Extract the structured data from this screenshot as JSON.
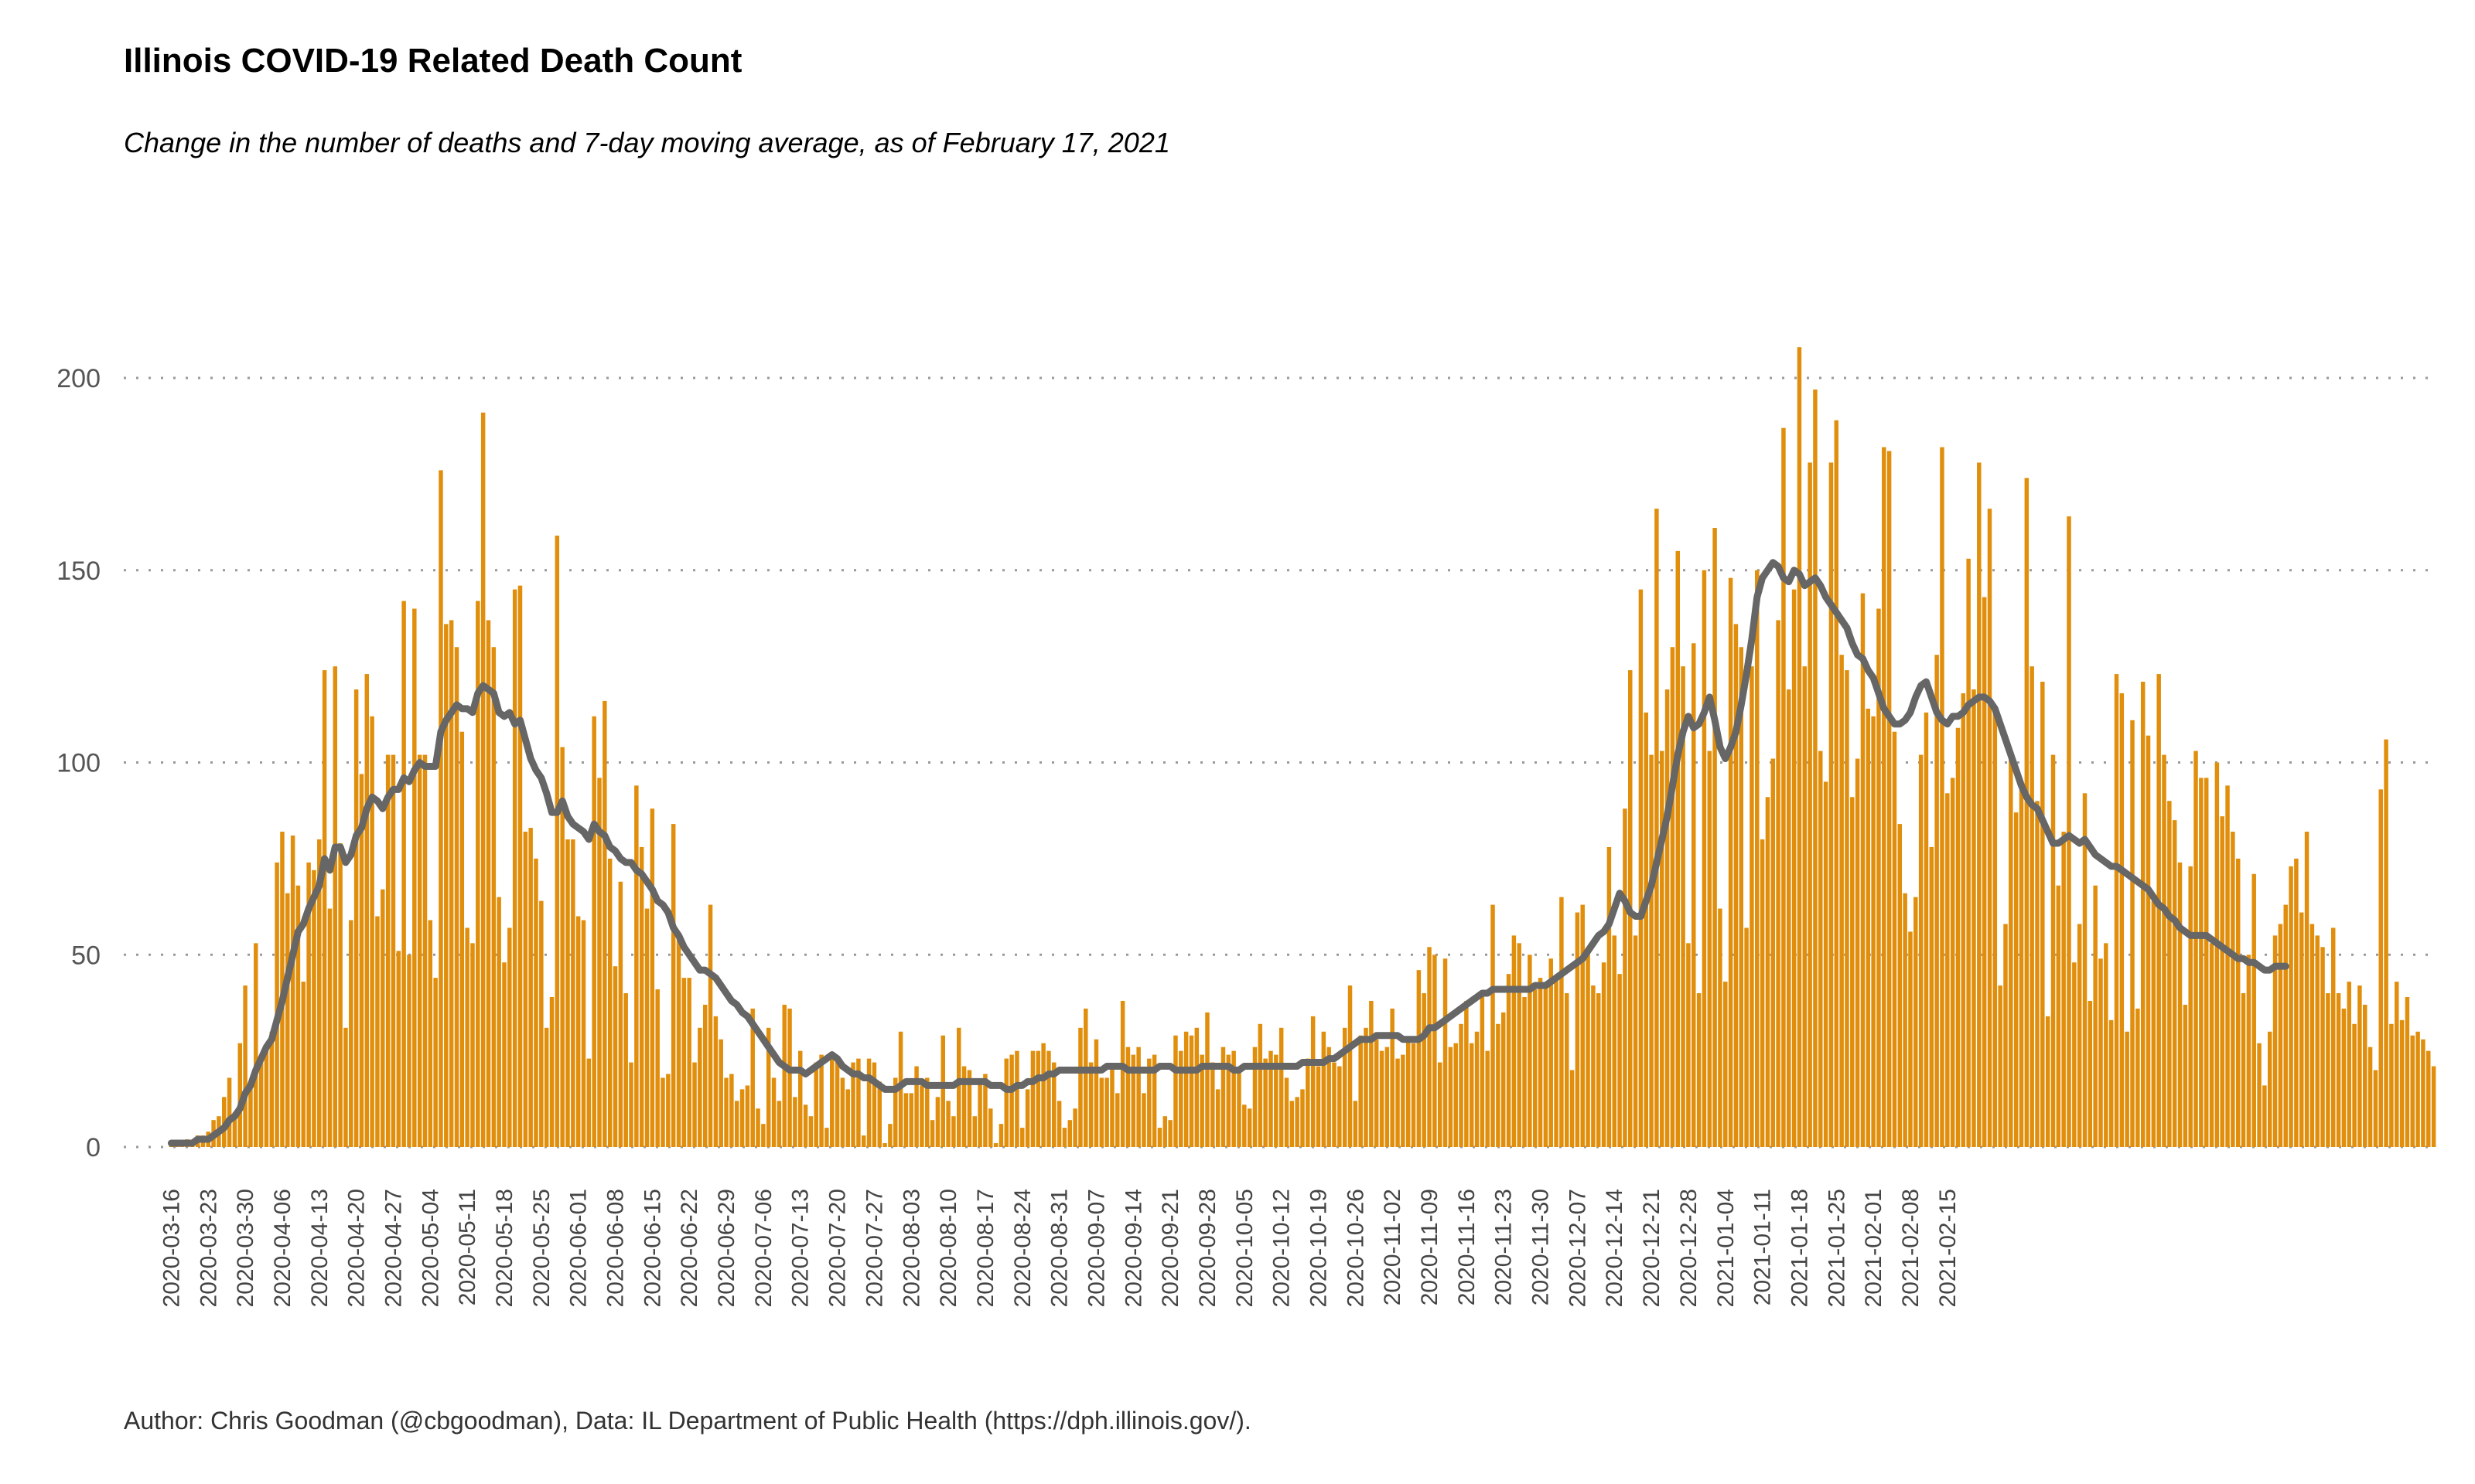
{
  "title": "Illinois COVID-19 Related Death Count",
  "subtitle": "Change in the number of deaths and 7-day moving average, as of February 17, 2021",
  "caption": "Author: Chris Goodman (@cbgoodman), Data: IL Department of Public Health (https://dph.illinois.gov/).",
  "colors": {
    "bar": "#E08E0B",
    "line": "#666666",
    "grid": "#999999"
  },
  "chart_data": {
    "type": "bar",
    "start_date": "2020-03-16",
    "end_date": "2021-02-17",
    "ylim": [
      0,
      240
    ],
    "yticks": [
      0,
      50,
      100,
      150,
      200
    ],
    "grid": "horizontal-dotted",
    "xticks": [
      "2020-03-16",
      "2020-03-23",
      "2020-03-30",
      "2020-04-06",
      "2020-04-13",
      "2020-04-20",
      "2020-04-27",
      "2020-05-04",
      "2020-05-11",
      "2020-05-18",
      "2020-05-25",
      "2020-06-01",
      "2020-06-08",
      "2020-06-15",
      "2020-06-22",
      "2020-06-29",
      "2020-07-06",
      "2020-07-13",
      "2020-07-20",
      "2020-07-27",
      "2020-08-03",
      "2020-08-10",
      "2020-08-17",
      "2020-08-24",
      "2020-08-31",
      "2020-09-07",
      "2020-09-14",
      "2020-09-21",
      "2020-09-28",
      "2020-10-05",
      "2020-10-12",
      "2020-10-19",
      "2020-10-26",
      "2020-11-02",
      "2020-11-09",
      "2020-11-16",
      "2020-11-23",
      "2020-11-30",
      "2020-12-07",
      "2020-12-14",
      "2020-12-21",
      "2020-12-28",
      "2021-01-04",
      "2021-01-11",
      "2021-01-18",
      "2021-01-25",
      "2021-02-01",
      "2021-02-08",
      "2021-02-15"
    ],
    "series": [
      {
        "type": "bar",
        "values": [
          1,
          1,
          1,
          2,
          1,
          3,
          3,
          4,
          7,
          8,
          13,
          18,
          9,
          27,
          42,
          16,
          53,
          22,
          26,
          30,
          74,
          82,
          66,
          81,
          68,
          43,
          74,
          72,
          80,
          124,
          62,
          125,
          79,
          31,
          59,
          119,
          97,
          123,
          112,
          60,
          67,
          102,
          102,
          51,
          142,
          50,
          140,
          102,
          102,
          59,
          44,
          176,
          136,
          137,
          130,
          108,
          57,
          53,
          142,
          191,
          137,
          130,
          65,
          48,
          57,
          145,
          146,
          82,
          83,
          75,
          64,
          31,
          39,
          159,
          104,
          80,
          80,
          60,
          59,
          23,
          112,
          96,
          116,
          75,
          47,
          69,
          40,
          22,
          94,
          78,
          62,
          88,
          41,
          18,
          19,
          84,
          54,
          44,
          44,
          22,
          31,
          37,
          63,
          34,
          28,
          18,
          19,
          12,
          15,
          16,
          36,
          10,
          6,
          31,
          18,
          12,
          37,
          36,
          13,
          25,
          11,
          8,
          22,
          24,
          5,
          24,
          23,
          18,
          15,
          22,
          23,
          3,
          23,
          22,
          17,
          1,
          6,
          18,
          30,
          14,
          14,
          21,
          16,
          18,
          7,
          13,
          29,
          12,
          8,
          31,
          21,
          20,
          8,
          17,
          19,
          10,
          1,
          6,
          23,
          24,
          25,
          5,
          15,
          25,
          25,
          27,
          25,
          22,
          12,
          5,
          7,
          10,
          31,
          36,
          22,
          28,
          18,
          18,
          21,
          14,
          38,
          26,
          24,
          26,
          14,
          23,
          24,
          5,
          8,
          7,
          29,
          25,
          30,
          29,
          31,
          24,
          35,
          22,
          15,
          26,
          24,
          25,
          20,
          11,
          10,
          26,
          32,
          23,
          25,
          24,
          31,
          18,
          12,
          13,
          15,
          23,
          34,
          21,
          30,
          26,
          22,
          21,
          31,
          42,
          12,
          29,
          31,
          38,
          28,
          25,
          26,
          36,
          23,
          24,
          28,
          27,
          46,
          40,
          52,
          50,
          22,
          49,
          26,
          27,
          32,
          38,
          27,
          30,
          40,
          25,
          63,
          32,
          35,
          45,
          55,
          53,
          39,
          50,
          41,
          44,
          42,
          49,
          44,
          65,
          40,
          20,
          61,
          63,
          52,
          42,
          40,
          48,
          78,
          55,
          45,
          88,
          124,
          55,
          145,
          113,
          102,
          166,
          103,
          119,
          130,
          155,
          125,
          53,
          131,
          40,
          150,
          103,
          161,
          62,
          43,
          148,
          136,
          130,
          57,
          125,
          150,
          80,
          91,
          101,
          137,
          187,
          119,
          145,
          208,
          125,
          178,
          197,
          103,
          95,
          178,
          189,
          128,
          124,
          91,
          101,
          144,
          114,
          112,
          140,
          182,
          181,
          108,
          84,
          66,
          56,
          65,
          102,
          113,
          78,
          128,
          182,
          92,
          96,
          109,
          118,
          153,
          119,
          178,
          143,
          166,
          113,
          42,
          58,
          101,
          87,
          94,
          174,
          125,
          90,
          121,
          34,
          102,
          68,
          82,
          164,
          48,
          58,
          92,
          38,
          68,
          49,
          53,
          33,
          123,
          118,
          30,
          111,
          36,
          121,
          107,
          64,
          123,
          102,
          90,
          85,
          74,
          37,
          73,
          103,
          96,
          96,
          53,
          100,
          86,
          94,
          82,
          75,
          40,
          50,
          71,
          27,
          16,
          30,
          55,
          58,
          63,
          73,
          75,
          61,
          82,
          58,
          55,
          52,
          40,
          57,
          40,
          36,
          43,
          32,
          42,
          37,
          26,
          20,
          93,
          106,
          32,
          43,
          33,
          39,
          29,
          30,
          28,
          25,
          21
        ]
      },
      {
        "type": "line",
        "values": [
          1,
          1,
          1,
          1,
          1,
          2,
          2,
          2,
          3,
          4,
          5,
          7,
          8,
          10,
          14,
          16,
          20,
          23,
          26,
          28,
          33,
          38,
          44,
          50,
          56,
          58,
          62,
          65,
          68,
          75,
          72,
          78,
          78,
          74,
          76,
          81,
          83,
          88,
          91,
          90,
          88,
          91,
          93,
          93,
          96,
          95,
          98,
          100,
          99,
          99,
          99,
          108,
          111,
          113,
          115,
          114,
          114,
          113,
          118,
          120,
          119,
          118,
          113,
          112,
          113,
          110,
          111,
          106,
          101,
          98,
          96,
          92,
          87,
          87,
          90,
          86,
          84,
          83,
          82,
          80,
          84,
          82,
          81,
          78,
          77,
          75,
          74,
          74,
          72,
          71,
          69,
          67,
          64,
          63,
          61,
          57,
          55,
          52,
          50,
          48,
          46,
          46,
          45,
          44,
          42,
          40,
          38,
          37,
          35,
          34,
          32,
          30,
          28,
          26,
          24,
          22,
          21,
          20,
          20,
          20,
          19,
          20,
          21,
          22,
          23,
          24,
          23,
          21,
          20,
          19,
          19,
          18,
          18,
          17,
          16,
          15,
          15,
          15,
          16,
          17,
          17,
          17,
          17,
          16,
          16,
          16,
          16,
          16,
          16,
          17,
          17,
          17,
          17,
          17,
          17,
          16,
          16,
          16,
          15,
          15,
          16,
          16,
          17,
          17,
          18,
          18,
          19,
          19,
          20,
          20,
          20,
          20,
          20,
          20,
          20,
          20,
          20,
          21,
          21,
          21,
          21,
          20,
          20,
          20,
          20,
          20,
          20,
          21,
          21,
          21,
          20,
          20,
          20,
          20,
          20,
          21,
          21,
          21,
          21,
          21,
          21,
          20,
          20,
          21,
          21,
          21,
          21,
          21,
          21,
          21,
          21,
          21,
          21,
          21,
          22,
          22,
          22,
          22,
          22,
          23,
          23,
          24,
          25,
          26,
          27,
          28,
          28,
          28,
          29,
          29,
          29,
          29,
          29,
          28,
          28,
          28,
          28,
          29,
          31,
          31,
          32,
          33,
          34,
          35,
          36,
          37,
          38,
          39,
          40,
          40,
          41,
          41,
          41,
          41,
          41,
          41,
          41,
          41,
          42,
          42,
          42,
          43,
          44,
          45,
          46,
          47,
          48,
          49,
          51,
          53,
          55,
          56,
          58,
          62,
          66,
          64,
          61,
          60,
          60,
          64,
          68,
          74,
          80,
          86,
          94,
          102,
          108,
          112,
          109,
          110,
          113,
          117,
          111,
          104,
          101,
          104,
          108,
          115,
          123,
          132,
          143,
          148,
          150,
          152,
          151,
          148,
          147,
          150,
          149,
          146,
          147,
          148,
          146,
          143,
          141,
          139,
          137,
          135,
          131,
          128,
          127,
          124,
          122,
          118,
          114,
          112,
          110,
          110,
          111,
          113,
          117,
          120,
          121,
          117,
          113,
          111,
          110,
          112,
          112,
          113,
          115,
          116,
          117,
          117,
          116,
          114,
          110,
          106,
          102,
          98,
          94,
          91,
          89,
          88,
          85,
          82,
          79,
          79,
          80,
          81,
          80,
          79,
          80,
          78,
          76,
          75,
          74,
          73,
          73,
          72,
          71,
          70,
          69,
          68,
          67,
          65,
          63,
          62,
          60,
          59,
          57,
          56,
          55,
          55,
          55,
          55,
          54,
          53,
          52,
          51,
          50,
          49,
          49,
          48,
          48,
          47,
          46,
          46,
          47,
          47,
          47
        ]
      }
    ]
  }
}
